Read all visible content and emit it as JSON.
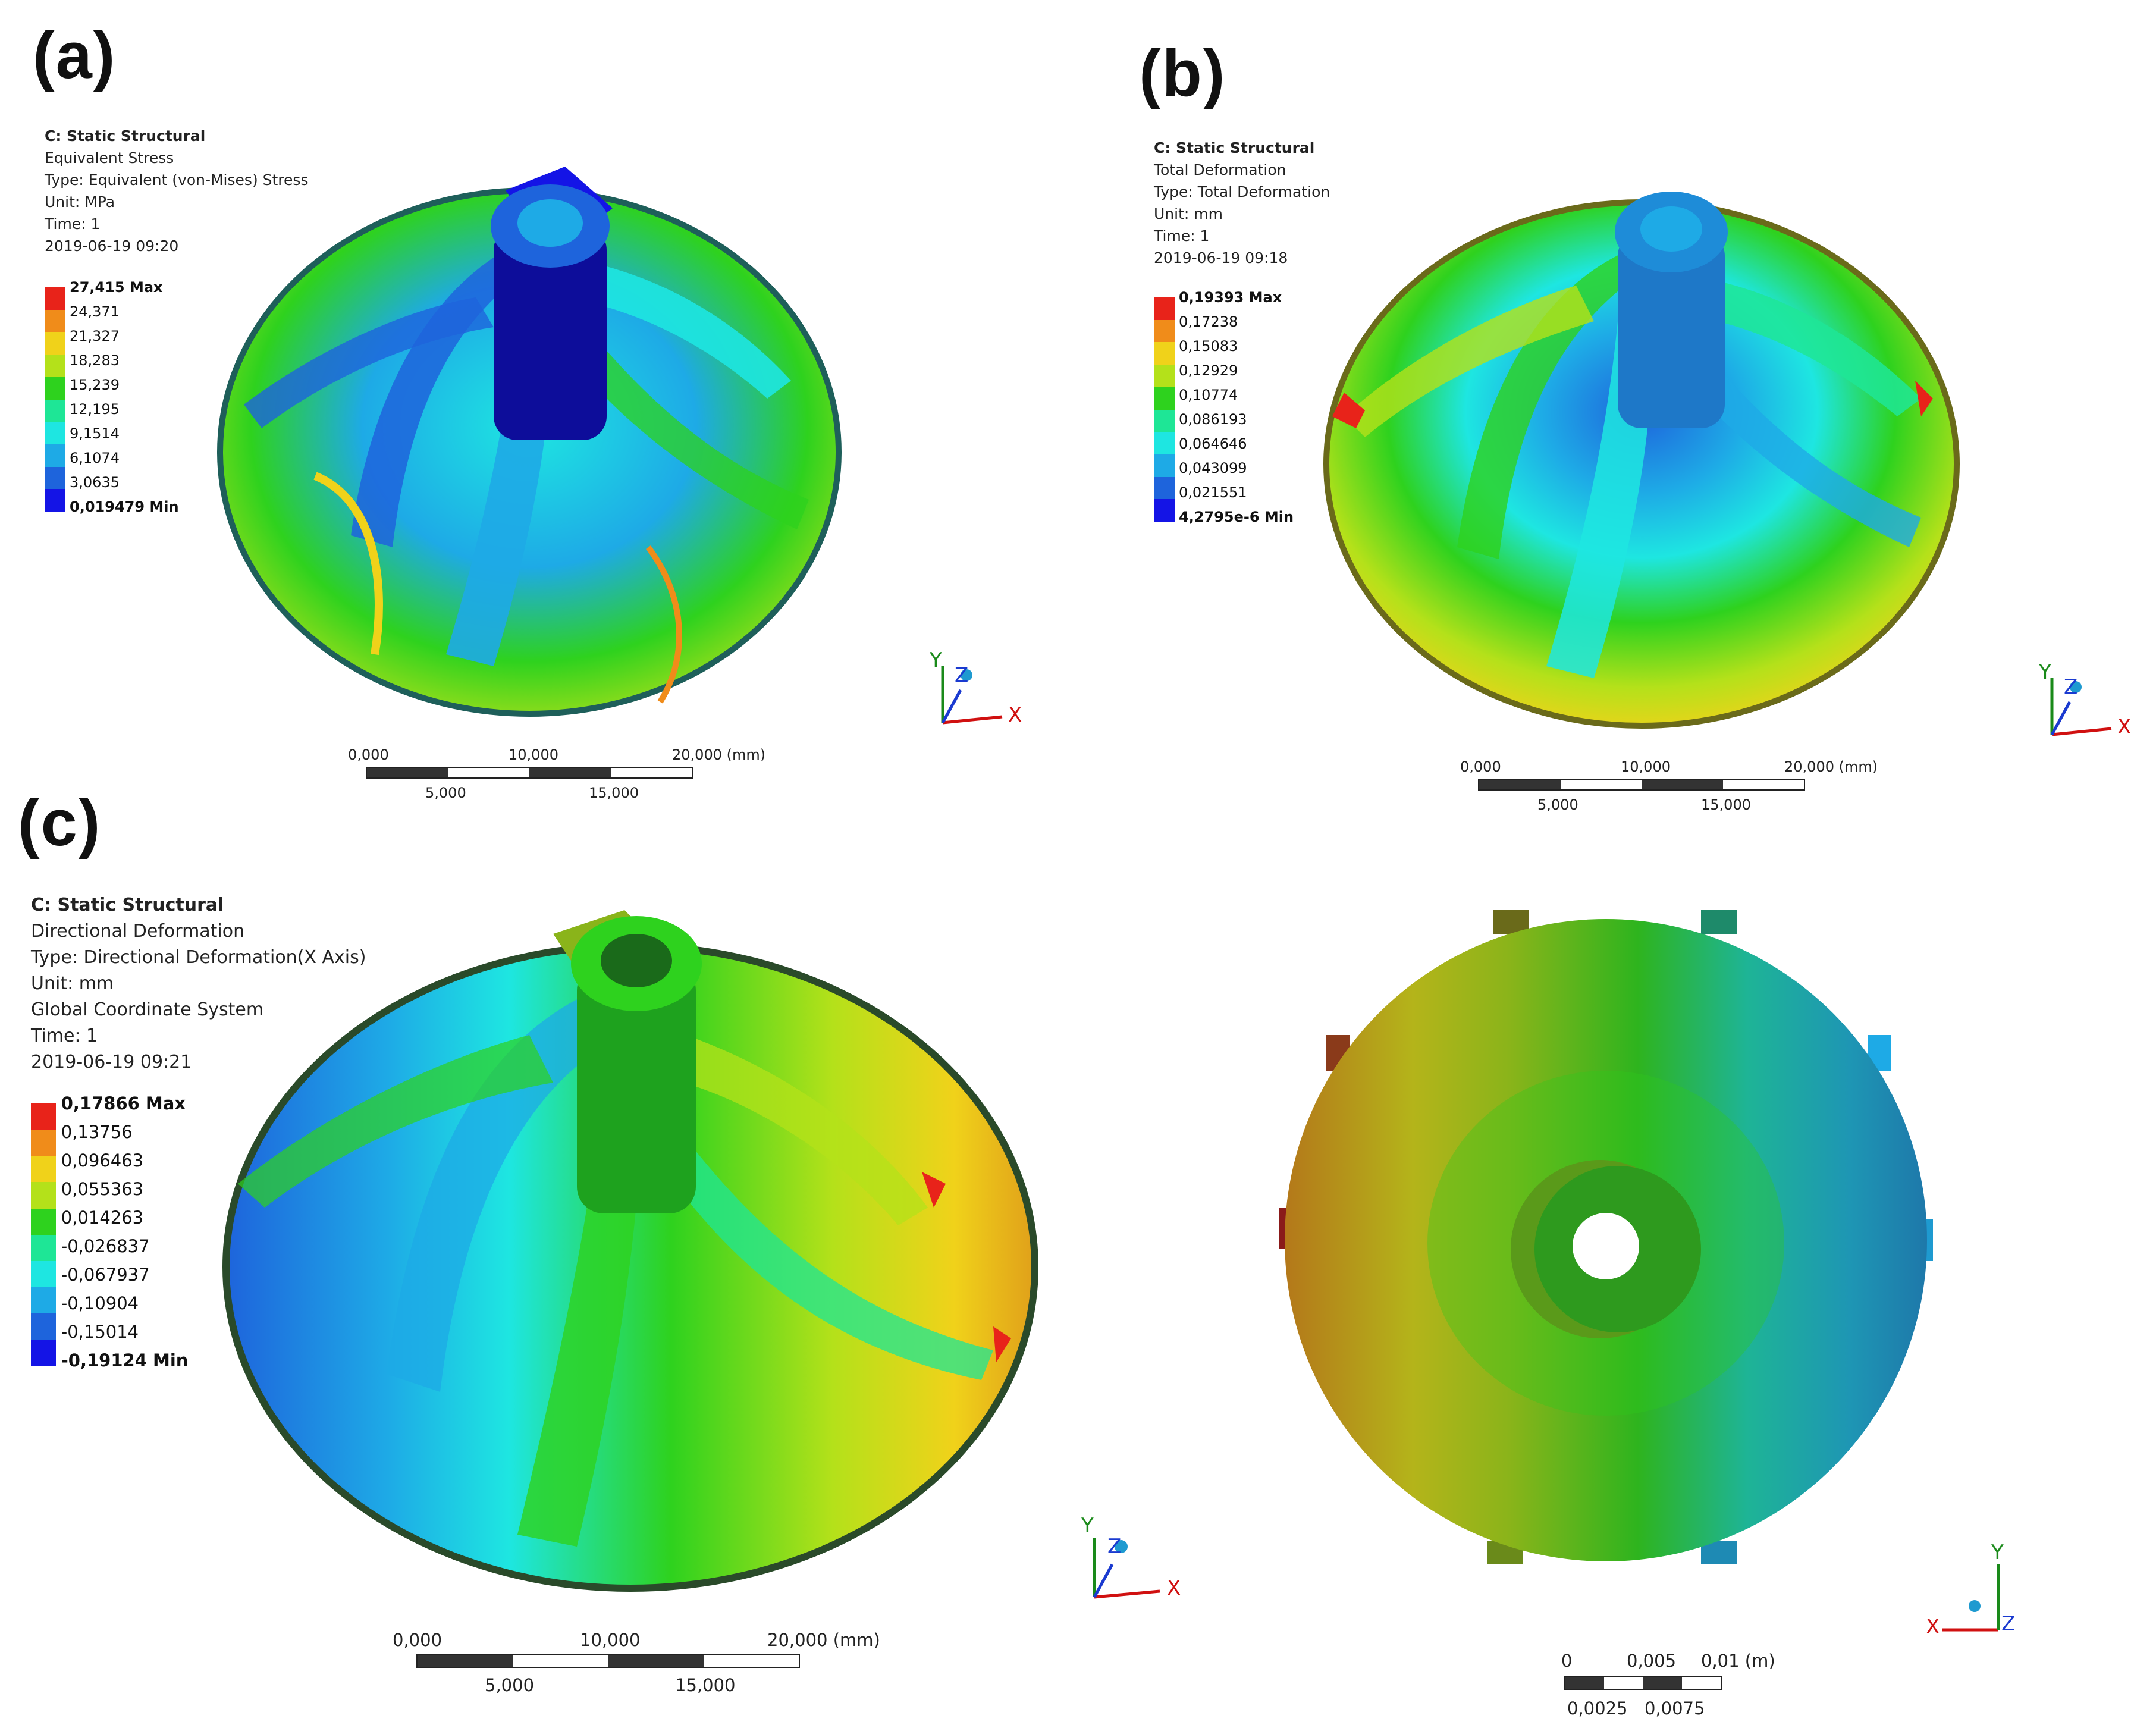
{
  "panels": {
    "a": {
      "label": "(a)",
      "info": [
        "C: Static Structural",
        "Equivalent Stress",
        "Type: Equivalent (von-Mises) Stress",
        "Unit: MPa",
        "Time: 1",
        "2019-06-19 09:20"
      ],
      "legend": [
        "27,415 Max",
        "24,371",
        "21,327",
        "18,283",
        "15,239",
        "12,195",
        "9,1514",
        "6,1074",
        "3,0635",
        "0,019479 Min"
      ],
      "scale_top": [
        "0,000",
        "10,000",
        "20,000 (mm)"
      ],
      "scale_bottom": [
        "5,000",
        "15,000"
      ],
      "axes": {
        "x": "X",
        "y": "Y",
        "z": "Z"
      }
    },
    "b": {
      "label": "(b)",
      "info": [
        "C: Static Structural",
        "Total Deformation",
        "Type: Total Deformation",
        "Unit: mm",
        "Time: 1",
        "2019-06-19 09:18"
      ],
      "legend": [
        "0,19393 Max",
        "0,17238",
        "0,15083",
        "0,12929",
        "0,10774",
        "0,086193",
        "0,064646",
        "0,043099",
        "0,021551",
        "4,2795e-6 Min"
      ],
      "scale_top": [
        "0,000",
        "10,000",
        "20,000 (mm)"
      ],
      "scale_bottom": [
        "5,000",
        "15,000"
      ],
      "axes": {
        "x": "X",
        "y": "Y",
        "z": "Z"
      }
    },
    "c": {
      "label": "(c)",
      "info": [
        "C: Static Structural",
        "Directional Deformation",
        "Type: Directional Deformation(X Axis)",
        "Unit: mm",
        "Global Coordinate System",
        "Time: 1",
        "2019-06-19 09:21"
      ],
      "legend": [
        "0,17866 Max",
        "0,13756",
        "0,096463",
        "0,055363",
        "0,014263",
        "-0,026837",
        "-0,067937",
        "-0,10904",
        "-0,15014",
        "-0,19124 Min"
      ],
      "scale_top": [
        "0,000",
        "10,000",
        "20,000 (mm)"
      ],
      "scale_bottom": [
        "5,000",
        "15,000"
      ],
      "axes": {
        "x": "X",
        "y": "Y",
        "z": "Z"
      }
    },
    "d": {
      "scale_top": [
        "0",
        "0,005",
        "0,01 (m)"
      ],
      "scale_bottom": [
        "0,0025",
        "0,0075"
      ],
      "axes": {
        "x": "X",
        "y": "Y",
        "z": "Z"
      }
    }
  },
  "legend_colors": [
    "#e8231a",
    "#f08c1a",
    "#f0d21a",
    "#b4e11a",
    "#2ed21e",
    "#1ee696",
    "#1ee6e1",
    "#1eaae6",
    "#1e64dc",
    "#1414e6"
  ]
}
